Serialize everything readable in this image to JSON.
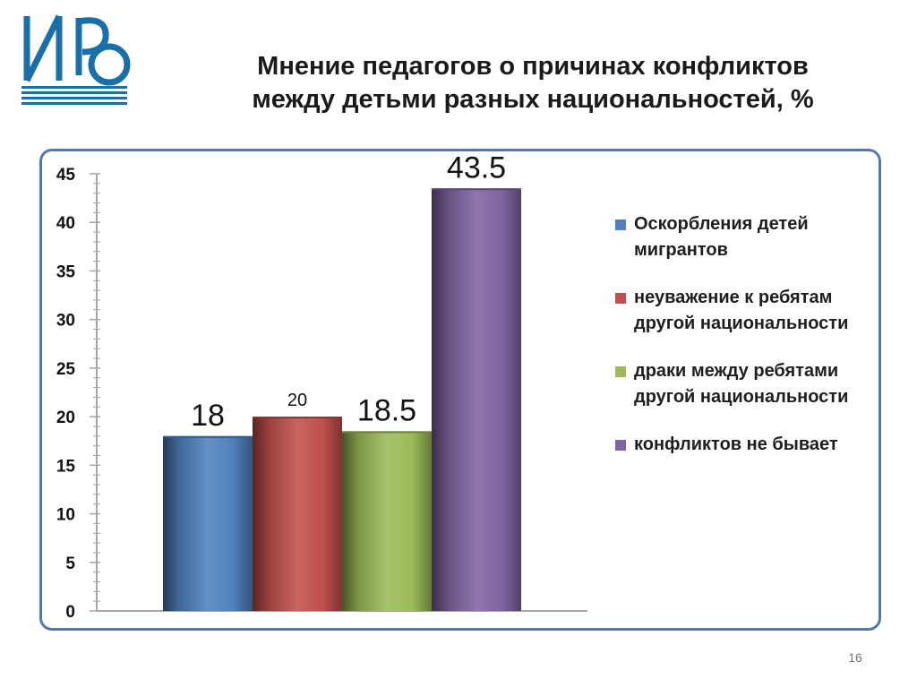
{
  "slide": {
    "title_line1": "Мнение педагогов о причинах конфликтов",
    "title_line2": "между детьми разных национальностей, %",
    "page_number": "16",
    "logo_text": "ИВ",
    "accent_color": "#1a6fa8",
    "frame_color": "#5577b0"
  },
  "chart_data": {
    "type": "bar",
    "title": "",
    "xlabel": "",
    "ylabel": "",
    "ylim": [
      0,
      45
    ],
    "ytick_step": 5,
    "yticks": [
      "0",
      "5",
      "10",
      "15",
      "20",
      "25",
      "30",
      "35",
      "40",
      "45"
    ],
    "grid": false,
    "legend_position": "right",
    "series": [
      {
        "name": "Оскорбления детей мигрантов",
        "value": 18,
        "label": "18",
        "color": "#4f81bd"
      },
      {
        "name": "неуважение к ребятам другой национальности",
        "value": 20,
        "label": "20",
        "color": "#c0504d"
      },
      {
        "name": "драки между ребятами другой национальности",
        "value": 18.5,
        "label": "18.5",
        "color": "#9bbb59"
      },
      {
        "name": "конфликтов не бывает",
        "value": 43.5,
        "label": "43.5",
        "color": "#8064a2"
      }
    ]
  }
}
